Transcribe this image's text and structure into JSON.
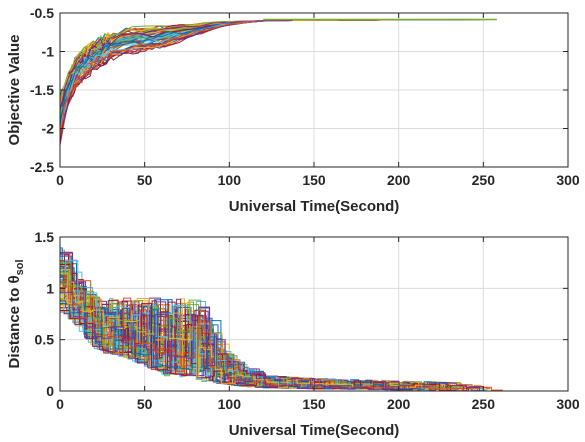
{
  "chart_data": [
    {
      "type": "line",
      "xlabel": "Universal Time(Second)",
      "ylabel": "Objective Value",
      "xlim": [
        0,
        300
      ],
      "ylim": [
        -2.5,
        -0.5
      ],
      "xticks": [
        "0",
        "50",
        "100",
        "150",
        "200",
        "250",
        "300"
      ],
      "yticks": [
        "-0.5",
        "-1",
        "-1.5",
        "-2",
        "-2.5"
      ],
      "grid": true,
      "legend": "none",
      "series_count": 60,
      "envelope": {
        "x": [
          0,
          2,
          5,
          10,
          20,
          30,
          40,
          50,
          60,
          70,
          80,
          90,
          100,
          120,
          150,
          200,
          258
        ],
        "upper": [
          -1.55,
          -1.4,
          -1.25,
          -1.0,
          -0.82,
          -0.72,
          -0.67,
          -0.65,
          -0.63,
          -0.62,
          -0.615,
          -0.61,
          -0.605,
          -0.6,
          -0.595,
          -0.59,
          -0.585
        ],
        "lower": [
          -2.3,
          -2.0,
          -1.75,
          -1.5,
          -1.3,
          -1.15,
          -1.08,
          -1.05,
          -1.0,
          -0.9,
          -0.82,
          -0.72,
          -0.66,
          -0.6,
          -0.595,
          -0.59,
          -0.585
        ]
      },
      "final_value": -0.585,
      "max_time": 258
    },
    {
      "type": "line",
      "xlabel": "Universal Time(Second)",
      "ylabel": "Distance to θ",
      "ylabel_subscript": "sol",
      "xlim": [
        0,
        300
      ],
      "ylim": [
        0,
        1.5
      ],
      "xticks": [
        "0",
        "50",
        "100",
        "150",
        "200",
        "250",
        "300"
      ],
      "yticks": [
        "1.5",
        "1",
        "0.5",
        "0"
      ],
      "grid": true,
      "legend": "none",
      "series_count": 60,
      "envelope": {
        "x": [
          0,
          5,
          10,
          20,
          40,
          60,
          80,
          100,
          120,
          150,
          200,
          235,
          258
        ],
        "upper": [
          1.4,
          1.3,
          1.1,
          0.9,
          0.92,
          0.92,
          0.9,
          0.3,
          0.15,
          0.12,
          0.1,
          0.08,
          0.02
        ],
        "lower": [
          0.75,
          0.7,
          0.6,
          0.4,
          0.3,
          0.15,
          0.1,
          0.05,
          0.03,
          0.02,
          0.01,
          0.0,
          0.0
        ]
      },
      "max_time": 258
    }
  ],
  "colors": [
    "#0072bd",
    "#d95319",
    "#edb120",
    "#7e2f8e",
    "#77ac30",
    "#4dbeee",
    "#a2142f"
  ]
}
